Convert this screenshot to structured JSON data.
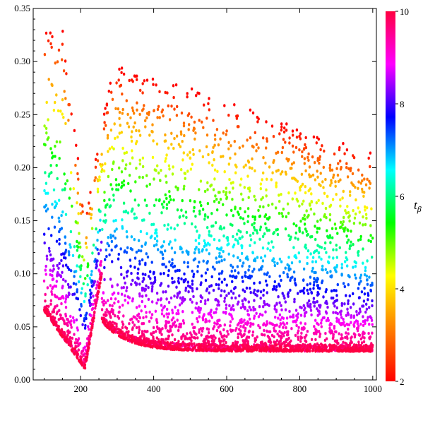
{
  "chart_data": {
    "type": "scatter",
    "title": "",
    "xlabel": "",
    "ylabel": "",
    "xlim": [
      70,
      1010
    ],
    "ylim": [
      0,
      0.35
    ],
    "x_ticks": [
      "200",
      "400",
      "600",
      "800",
      "1000"
    ],
    "y_ticks": [
      "0.00",
      "0.05",
      "0.10",
      "0.15",
      "0.20",
      "0.25",
      "0.30",
      "0.35"
    ],
    "grid": false,
    "point_color": "by colorbar value",
    "point_x_range": [
      100,
      1000
    ],
    "point_y_range": [
      0.008,
      0.34
    ],
    "colorbar": {
      "label": "t",
      "label_subscript": "β",
      "range": [
        2,
        10
      ],
      "ticks": [
        "2",
        "4",
        "6",
        "8",
        "10"
      ],
      "colors": [
        "#ff0000",
        "#ff8000",
        "#ffff00",
        "#00ff00",
        "#00ffff",
        "#0000ff",
        "#ff00ff",
        "#ff0040"
      ]
    }
  }
}
